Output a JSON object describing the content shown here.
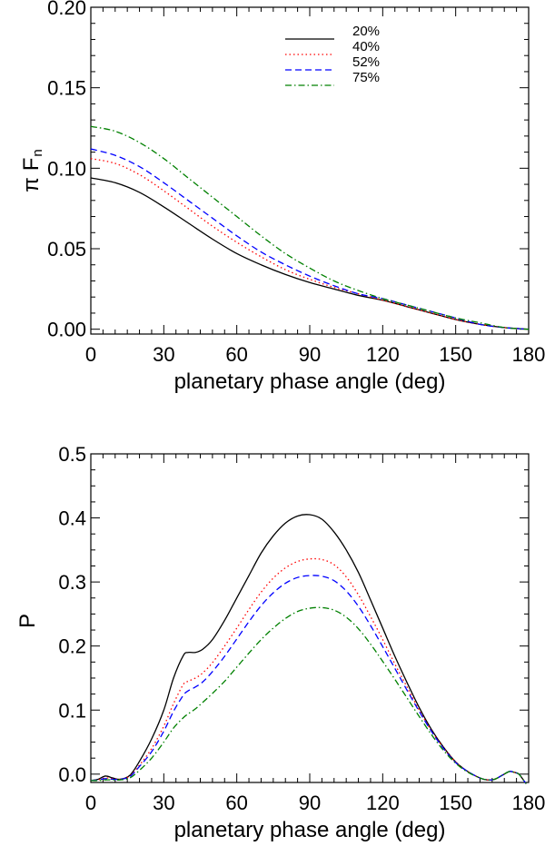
{
  "chart_data": [
    {
      "type": "line",
      "xlabel": "planetary phase angle (deg)",
      "ylabel": {
        "pi": "π",
        "main": "F",
        "sub": "n"
      },
      "xlim": [
        0,
        180
      ],
      "ylim": [
        0,
        0.2
      ],
      "xticks": [
        0,
        30,
        60,
        90,
        120,
        150,
        180
      ],
      "yticks": [
        "0.00",
        "0.05",
        "0.10",
        "0.15",
        "0.20"
      ],
      "legend_position": "top-center",
      "x": [
        0,
        10,
        20,
        30,
        40,
        50,
        60,
        70,
        80,
        90,
        100,
        110,
        120,
        130,
        140,
        150,
        160,
        170,
        180
      ],
      "series": [
        {
          "name": "20%",
          "color": "#000000",
          "dash": "solid",
          "values": [
            0.094,
            0.091,
            0.085,
            0.076,
            0.066,
            0.056,
            0.047,
            0.04,
            0.034,
            0.029,
            0.025,
            0.021,
            0.018,
            0.014,
            0.01,
            0.006,
            0.003,
            0.001,
            0.0
          ]
        },
        {
          "name": "40%",
          "color": "#ff0000",
          "dash": "dotted",
          "values": [
            0.106,
            0.103,
            0.096,
            0.086,
            0.075,
            0.064,
            0.054,
            0.045,
            0.037,
            0.031,
            0.026,
            0.022,
            0.018,
            0.014,
            0.01,
            0.006,
            0.003,
            0.001,
            0.0
          ]
        },
        {
          "name": "52%",
          "color": "#0000ff",
          "dash": "dashed",
          "values": [
            0.112,
            0.108,
            0.101,
            0.091,
            0.08,
            0.069,
            0.058,
            0.048,
            0.04,
            0.033,
            0.027,
            0.022,
            0.019,
            0.015,
            0.011,
            0.007,
            0.003,
            0.001,
            0.0
          ]
        },
        {
          "name": "75%",
          "color": "#008000",
          "dash": "dashdot",
          "values": [
            0.126,
            0.123,
            0.116,
            0.106,
            0.094,
            0.082,
            0.07,
            0.058,
            0.047,
            0.038,
            0.03,
            0.024,
            0.019,
            0.015,
            0.011,
            0.007,
            0.004,
            0.001,
            0.0
          ]
        }
      ]
    },
    {
      "type": "line",
      "xlabel": "planetary phase angle (deg)",
      "ylabel": "P",
      "xlim": [
        0,
        180
      ],
      "ylim": [
        0,
        0.5
      ],
      "xticks": [
        0,
        30,
        60,
        90,
        120,
        150,
        180
      ],
      "yticks": [
        "0.0",
        "0.1",
        "0.2",
        "0.3",
        "0.4",
        "0.5"
      ],
      "x": [
        0,
        3,
        6,
        9,
        12,
        16,
        20,
        25,
        30,
        34,
        38,
        40,
        43,
        46,
        50,
        55,
        60,
        65,
        70,
        75,
        80,
        85,
        90,
        95,
        100,
        105,
        110,
        115,
        120,
        125,
        130,
        135,
        140,
        145,
        150,
        155,
        160,
        163,
        166,
        169,
        172,
        174,
        176,
        178,
        179
      ],
      "series": [
        {
          "name": "20%",
          "color": "#000000",
          "dash": "solid",
          "values": [
            -0.01,
            -0.008,
            -0.003,
            -0.006,
            -0.008,
            -0.002,
            0.02,
            0.055,
            0.1,
            0.15,
            0.185,
            0.19,
            0.19,
            0.195,
            0.21,
            0.24,
            0.275,
            0.31,
            0.345,
            0.372,
            0.392,
            0.403,
            0.405,
            0.398,
            0.378,
            0.35,
            0.315,
            0.272,
            0.228,
            0.184,
            0.143,
            0.104,
            0.07,
            0.042,
            0.019,
            0.004,
            -0.006,
            -0.009,
            -0.008,
            -0.002,
            0.004,
            0.003,
            0.0,
            -0.01,
            -0.015
          ]
        },
        {
          "name": "40%",
          "color": "#ff0000",
          "dash": "dotted",
          "values": [
            -0.01,
            -0.009,
            -0.006,
            -0.007,
            -0.008,
            -0.003,
            0.014,
            0.04,
            0.075,
            0.11,
            0.14,
            0.145,
            0.15,
            0.158,
            0.174,
            0.2,
            0.228,
            0.257,
            0.284,
            0.306,
            0.322,
            0.332,
            0.336,
            0.335,
            0.327,
            0.308,
            0.28,
            0.246,
            0.21,
            0.172,
            0.136,
            0.1,
            0.068,
            0.041,
            0.019,
            0.004,
            -0.006,
            -0.009,
            -0.008,
            -0.002,
            0.004,
            0.003,
            0.0,
            -0.01,
            -0.015
          ]
        },
        {
          "name": "52%",
          "color": "#0000ff",
          "dash": "dashed",
          "values": [
            -0.01,
            -0.009,
            -0.007,
            -0.008,
            -0.008,
            -0.004,
            0.012,
            0.035,
            0.067,
            0.098,
            0.123,
            0.13,
            0.136,
            0.144,
            0.16,
            0.184,
            0.211,
            0.238,
            0.263,
            0.283,
            0.298,
            0.307,
            0.31,
            0.309,
            0.302,
            0.286,
            0.262,
            0.232,
            0.199,
            0.165,
            0.131,
            0.098,
            0.067,
            0.04,
            0.018,
            0.004,
            -0.006,
            -0.009,
            -0.008,
            -0.002,
            0.004,
            0.003,
            0.0,
            -0.01,
            -0.015
          ]
        },
        {
          "name": "75%",
          "color": "#008000",
          "dash": "dashdot",
          "values": [
            -0.01,
            -0.01,
            -0.009,
            -0.009,
            -0.009,
            -0.006,
            0.006,
            0.025,
            0.05,
            0.072,
            0.088,
            0.094,
            0.102,
            0.112,
            0.126,
            0.145,
            0.167,
            0.189,
            0.21,
            0.228,
            0.243,
            0.254,
            0.259,
            0.26,
            0.256,
            0.245,
            0.227,
            0.203,
            0.176,
            0.148,
            0.119,
            0.09,
            0.062,
            0.037,
            0.017,
            0.003,
            -0.006,
            -0.009,
            -0.008,
            -0.002,
            0.004,
            0.003,
            0.0,
            -0.01,
            -0.015
          ]
        }
      ]
    }
  ]
}
